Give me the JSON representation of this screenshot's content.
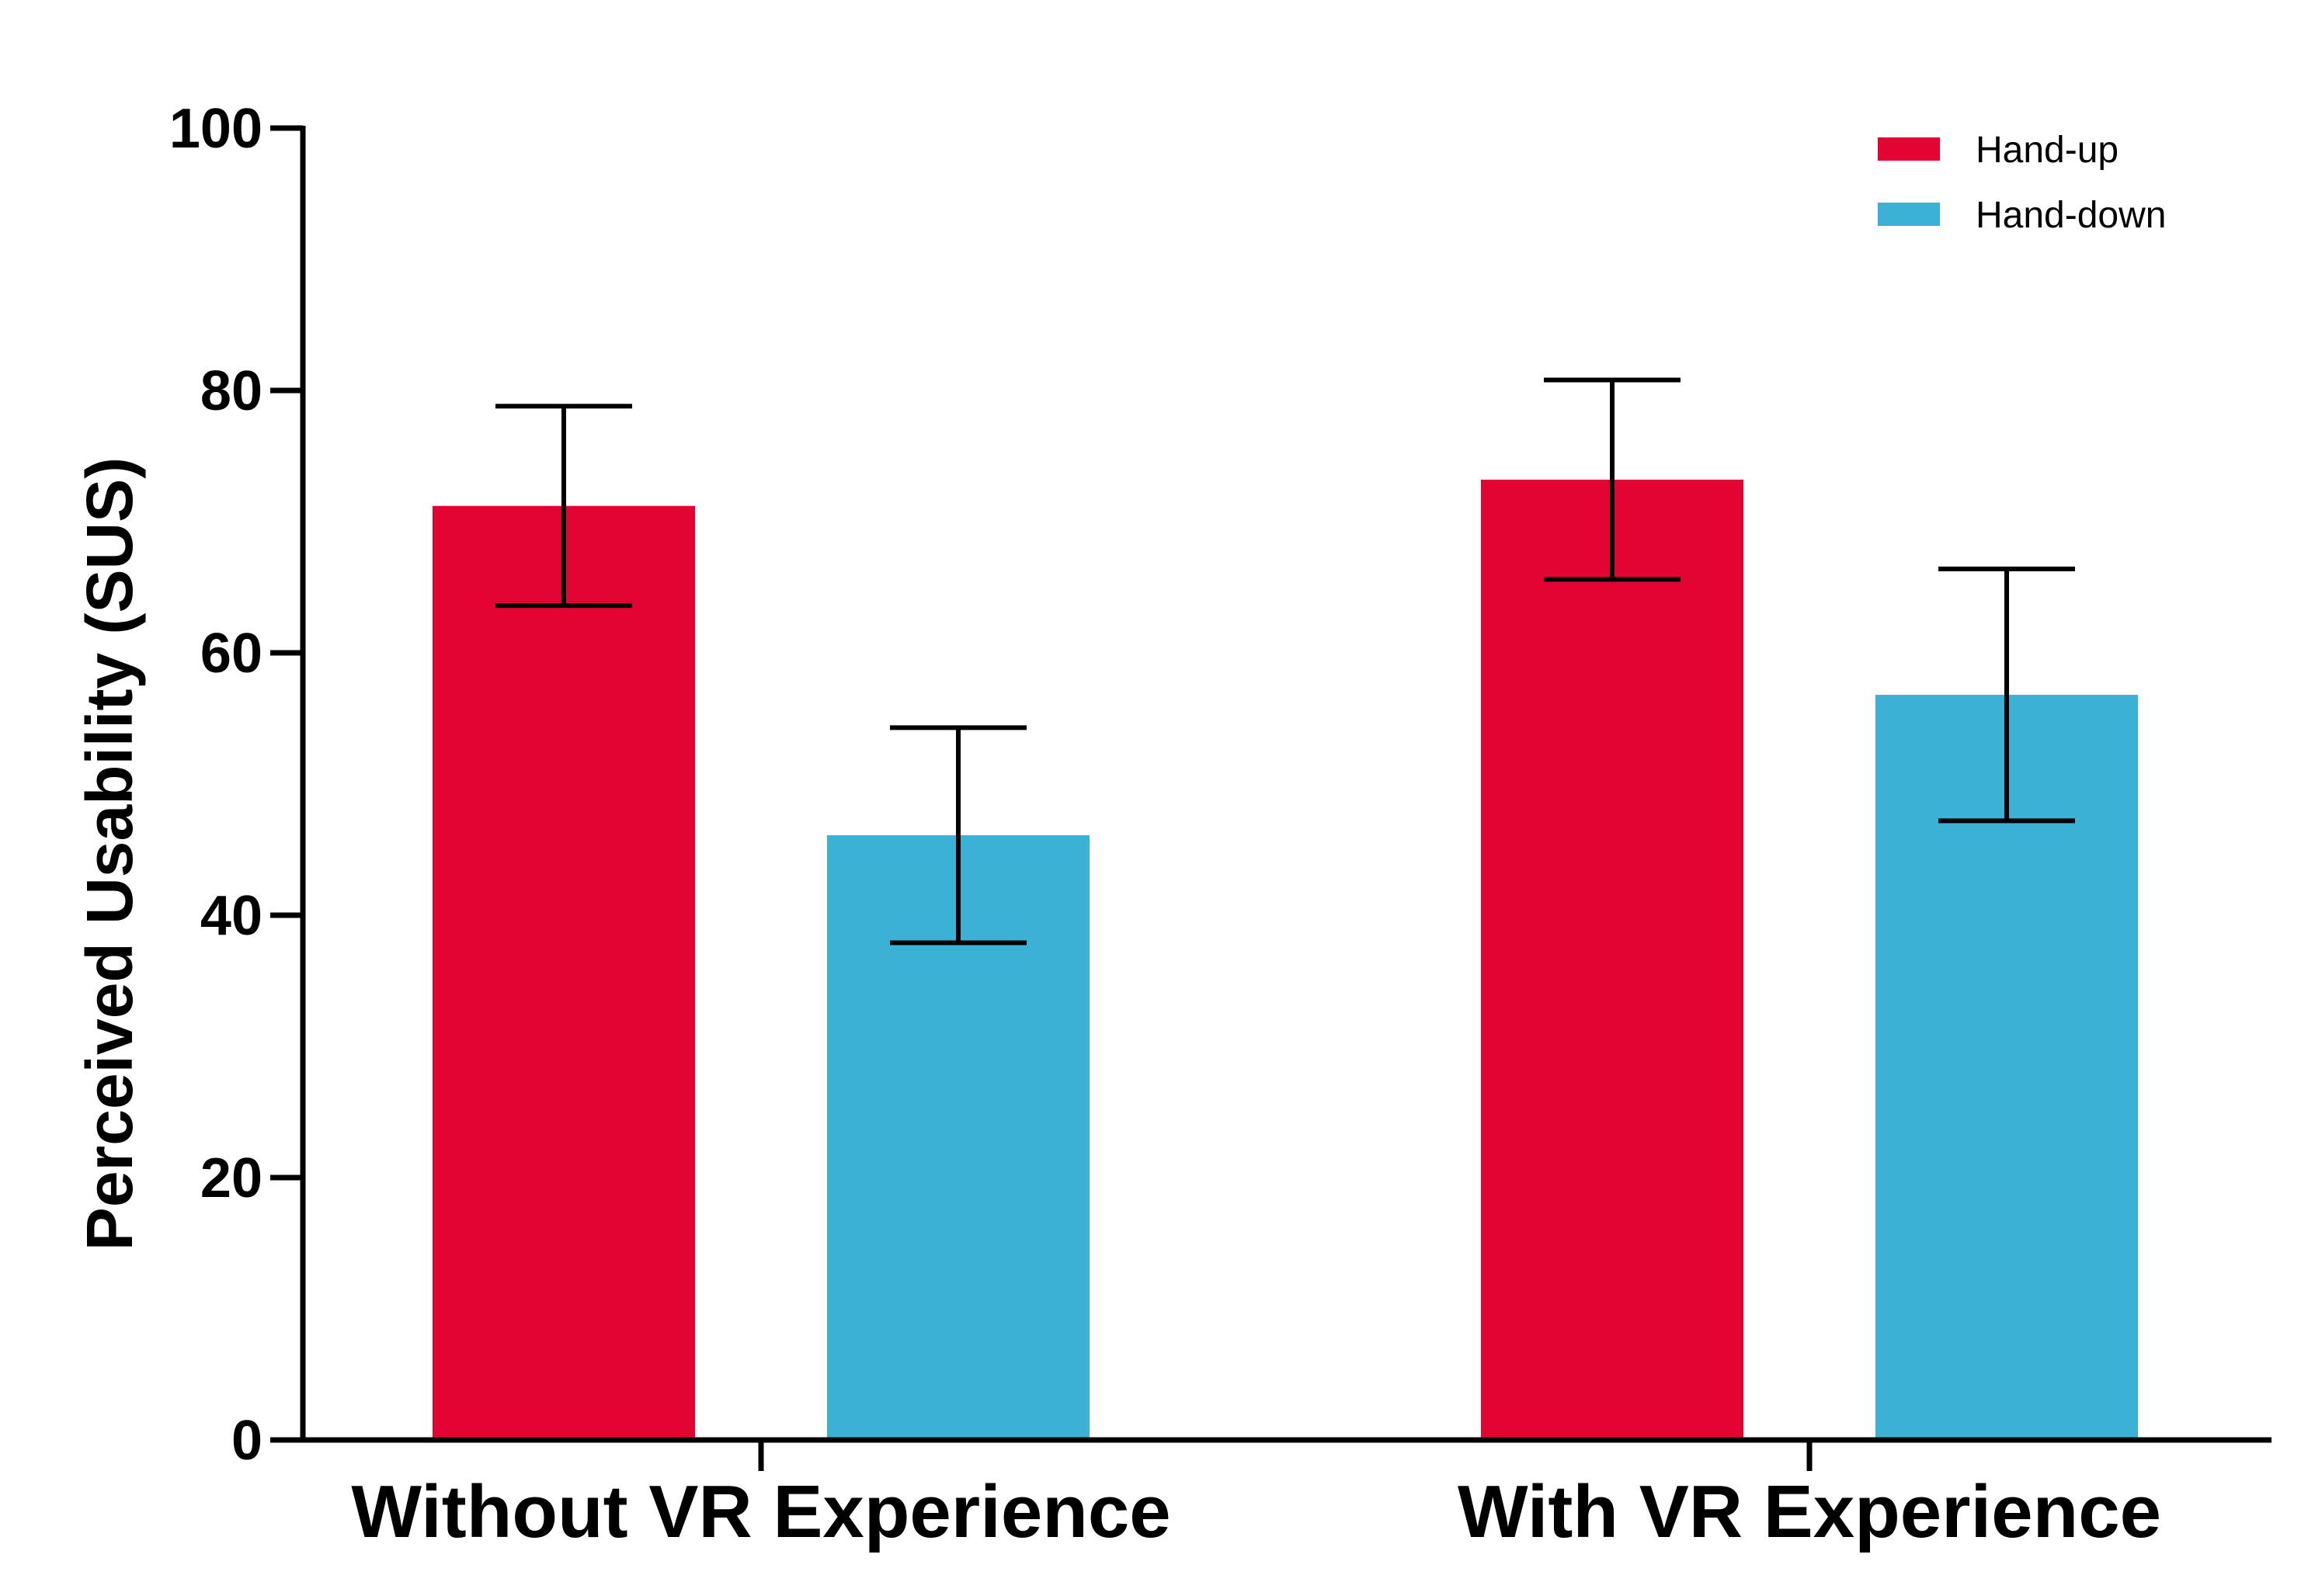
{
  "chart_data": {
    "type": "bar",
    "title": "",
    "xlabel": "",
    "ylabel": "Perceived Usability (SUS)",
    "ylim": [
      0,
      100
    ],
    "yticks": [
      0,
      20,
      40,
      60,
      80,
      100
    ],
    "grid": false,
    "legend_position": "top-right",
    "categories": [
      "Without VR Experience",
      "With VR Experience"
    ],
    "series": [
      {
        "name": "Hand-up",
        "color": "#e20534",
        "values": [
          71.2,
          73.2
        ],
        "error": [
          7.6,
          7.6
        ]
      },
      {
        "name": "Hand-down",
        "color": "#3bb1d6",
        "values": [
          46.1,
          56.8
        ],
        "error": [
          8.2,
          9.6
        ]
      }
    ]
  }
}
